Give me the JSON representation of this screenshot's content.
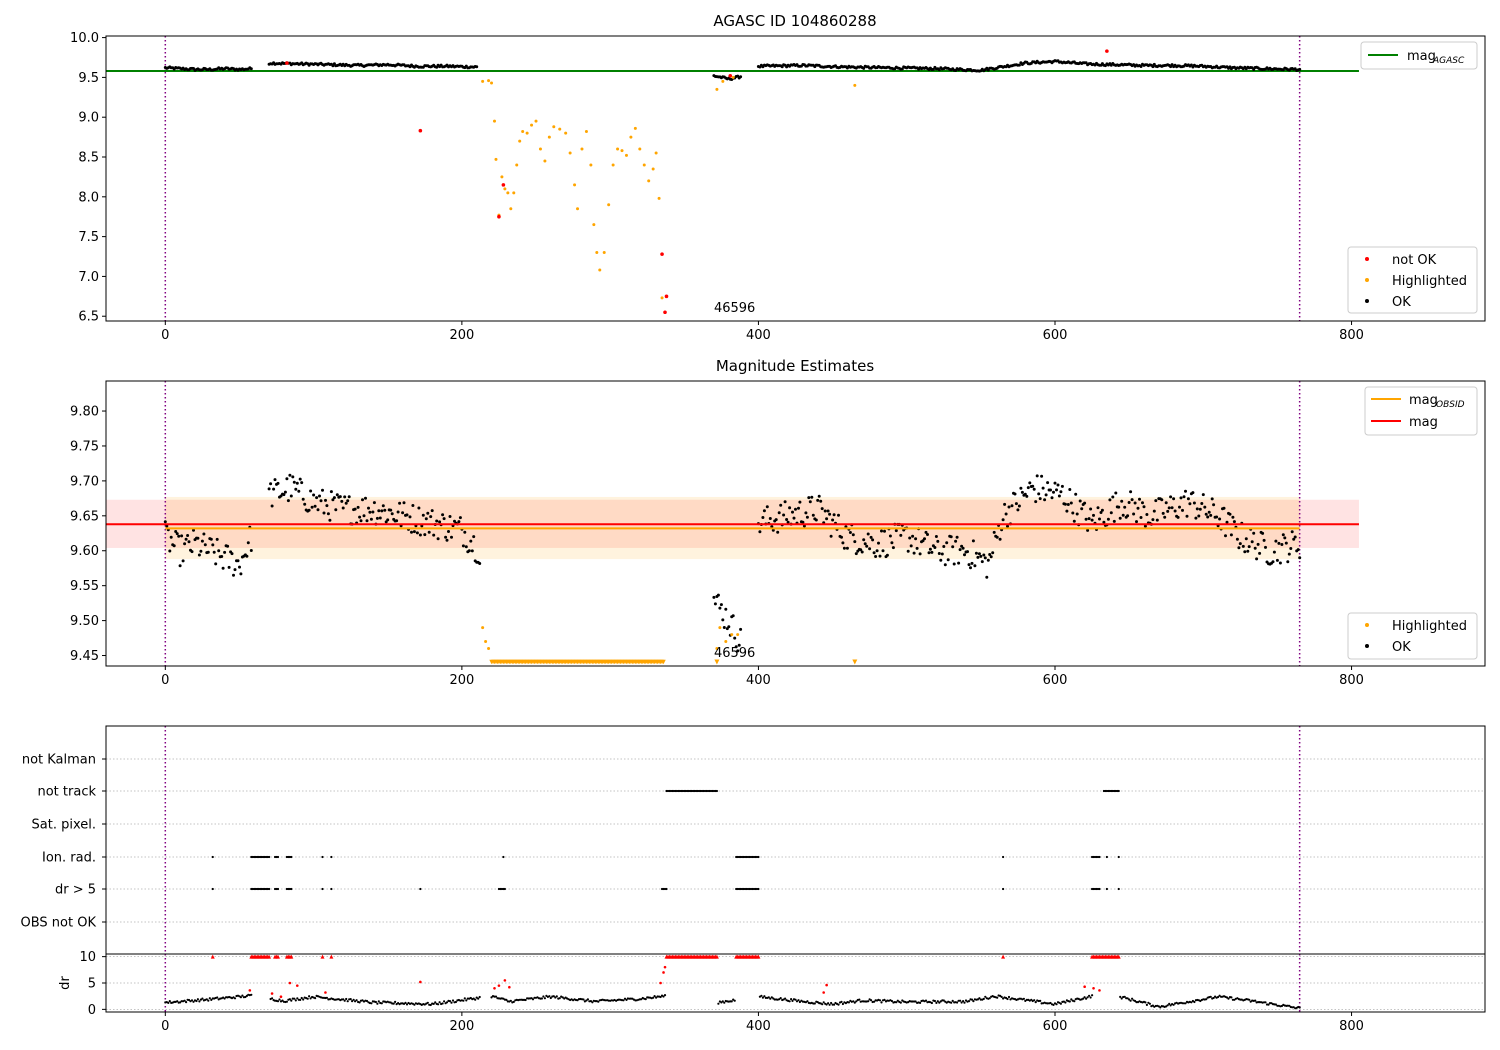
{
  "figure": {
    "panel1_title": "AGASC ID 104860288",
    "panel2_title": "Magnitude Estimates",
    "obsid_label": "46596",
    "colors": {
      "ok": "#000000",
      "highlighted": "#ffa500",
      "not_ok": "#ff0000",
      "agasc": "#008000",
      "obsid": "#ffa500",
      "mag": "#ff0000",
      "grid": "#b0b0b0",
      "marker": "#800080"
    }
  },
  "chart_data": [
    {
      "type": "scatter",
      "title": "AGASC ID 104860288",
      "xlim": [
        -40,
        890
      ],
      "ylim": [
        6.44,
        10.02
      ],
      "xticks": [
        0,
        200,
        400,
        600,
        800
      ],
      "yticks": [
        6.5,
        7.0,
        7.5,
        8.0,
        8.5,
        9.0,
        9.5,
        10.0
      ],
      "ytick_labels": [
        "6.5",
        "7.0",
        "7.5",
        "8.0",
        "8.5",
        "9.0",
        "9.5",
        "10.0"
      ],
      "vlines": [
        0,
        765
      ],
      "agasc_mag": 9.58,
      "annotation": "46596",
      "legend_upper": [
        {
          "label": "mag",
          "sub": "AGASC"
        }
      ],
      "legend_lower": [
        {
          "label": "not OK"
        },
        {
          "label": "Highlighted"
        },
        {
          "label": "OK"
        }
      ],
      "ok_segments": [
        {
          "x": [
            0,
            10,
            20,
            30,
            40,
            50,
            58
          ],
          "y": [
            9.62,
            9.61,
            9.6,
            9.6,
            9.61,
            9.6,
            9.61
          ]
        },
        {
          "x": [
            70,
            90,
            110,
            130,
            150,
            170,
            190,
            210
          ],
          "y": [
            9.68,
            9.67,
            9.66,
            9.65,
            9.66,
            9.64,
            9.64,
            9.63
          ]
        },
        {
          "x": [
            370,
            380,
            388
          ],
          "y": [
            9.52,
            9.48,
            9.51
          ]
        },
        {
          "x": [
            400,
            430,
            460,
            490,
            520,
            550,
            580,
            600,
            620,
            640,
            660,
            680,
            700,
            720,
            740,
            765
          ],
          "y": [
            9.64,
            9.65,
            9.63,
            9.62,
            9.61,
            9.59,
            9.68,
            9.7,
            9.67,
            9.66,
            9.65,
            9.65,
            9.64,
            9.62,
            9.61,
            9.6
          ]
        }
      ],
      "highlighted": [
        {
          "x": 214,
          "y": 9.45
        },
        {
          "x": 218,
          "y": 9.46
        },
        {
          "x": 220,
          "y": 9.43
        },
        {
          "x": 222,
          "y": 8.95
        },
        {
          "x": 223,
          "y": 8.47
        },
        {
          "x": 225,
          "y": 7.77
        },
        {
          "x": 227,
          "y": 8.25
        },
        {
          "x": 229,
          "y": 8.1
        },
        {
          "x": 231,
          "y": 8.05
        },
        {
          "x": 233,
          "y": 7.85
        },
        {
          "x": 235,
          "y": 8.05
        },
        {
          "x": 237,
          "y": 8.4
        },
        {
          "x": 239,
          "y": 8.7
        },
        {
          "x": 241,
          "y": 8.82
        },
        {
          "x": 244,
          "y": 8.8
        },
        {
          "x": 247,
          "y": 8.9
        },
        {
          "x": 250,
          "y": 8.95
        },
        {
          "x": 253,
          "y": 8.6
        },
        {
          "x": 256,
          "y": 8.45
        },
        {
          "x": 259,
          "y": 8.75
        },
        {
          "x": 262,
          "y": 8.88
        },
        {
          "x": 266,
          "y": 8.85
        },
        {
          "x": 270,
          "y": 8.8
        },
        {
          "x": 273,
          "y": 8.55
        },
        {
          "x": 276,
          "y": 8.15
        },
        {
          "x": 278,
          "y": 7.85
        },
        {
          "x": 281,
          "y": 8.6
        },
        {
          "x": 284,
          "y": 8.82
        },
        {
          "x": 287,
          "y": 8.4
        },
        {
          "x": 289,
          "y": 7.65
        },
        {
          "x": 291,
          "y": 7.3
        },
        {
          "x": 293,
          "y": 7.08
        },
        {
          "x": 296,
          "y": 7.3
        },
        {
          "x": 299,
          "y": 7.9
        },
        {
          "x": 302,
          "y": 8.4
        },
        {
          "x": 305,
          "y": 8.6
        },
        {
          "x": 308,
          "y": 8.58
        },
        {
          "x": 311,
          "y": 8.52
        },
        {
          "x": 314,
          "y": 8.75
        },
        {
          "x": 317,
          "y": 8.86
        },
        {
          "x": 320,
          "y": 8.6
        },
        {
          "x": 323,
          "y": 8.4
        },
        {
          "x": 326,
          "y": 8.2
        },
        {
          "x": 329,
          "y": 8.35
        },
        {
          "x": 331,
          "y": 8.55
        },
        {
          "x": 333,
          "y": 7.98
        },
        {
          "x": 335,
          "y": 6.73
        },
        {
          "x": 372,
          "y": 9.35
        },
        {
          "x": 376,
          "y": 9.45
        },
        {
          "x": 383,
          "y": 9.5
        },
        {
          "x": 465,
          "y": 9.4
        }
      ],
      "not_ok": [
        {
          "x": 82,
          "y": 9.68
        },
        {
          "x": 172,
          "y": 8.83
        },
        {
          "x": 225,
          "y": 7.75
        },
        {
          "x": 228,
          "y": 8.15
        },
        {
          "x": 335,
          "y": 7.28
        },
        {
          "x": 337,
          "y": 6.55
        },
        {
          "x": 338,
          "y": 6.75
        },
        {
          "x": 381,
          "y": 9.52
        },
        {
          "x": 635,
          "y": 9.83
        }
      ]
    },
    {
      "type": "scatter",
      "title": "Magnitude Estimates",
      "xlim": [
        -40,
        890
      ],
      "ylim": [
        9.435,
        9.843
      ],
      "xticks": [
        0,
        200,
        400,
        600,
        800
      ],
      "yticks": [
        9.45,
        9.5,
        9.55,
        9.6,
        9.65,
        9.7,
        9.75,
        9.8
      ],
      "ytick_labels": [
        "9.45",
        "9.50",
        "9.55",
        "9.60",
        "9.65",
        "9.70",
        "9.75",
        "9.80"
      ],
      "vlines": [
        0,
        765
      ],
      "mag": 9.638,
      "mag_band": [
        9.604,
        9.673
      ],
      "mag_obsid": 9.632,
      "mag_obsid_band": [
        9.588,
        9.677
      ],
      "annotation": "46596",
      "legend_upper": [
        {
          "label": "mag",
          "sub": "OBSID"
        },
        {
          "label": "mag"
        }
      ],
      "legend_lower": [
        {
          "label": "Highlighted"
        },
        {
          "label": "OK"
        }
      ],
      "ok_segments": [
        {
          "x": [
            0,
            10,
            20,
            30,
            40,
            50,
            58
          ],
          "y": [
            9.62,
            9.6,
            9.61,
            9.6,
            9.59,
            9.58,
            9.62
          ]
        },
        {
          "x": [
            70,
            85,
            100,
            120,
            140,
            160,
            180,
            200,
            212
          ],
          "y": [
            9.68,
            9.69,
            9.67,
            9.66,
            9.66,
            9.65,
            9.64,
            9.63,
            9.6
          ]
        },
        {
          "x": [
            370,
            380,
            388
          ],
          "y": [
            9.53,
            9.5,
            9.47
          ]
        },
        {
          "x": [
            400,
            420,
            440,
            460,
            480,
            500,
            520,
            540,
            555,
            565,
            585,
            605,
            625,
            645,
            665,
            690,
            710,
            725,
            745,
            765
          ],
          "y": [
            9.64,
            9.65,
            9.66,
            9.62,
            9.61,
            9.62,
            9.6,
            9.6,
            9.58,
            9.65,
            9.69,
            9.68,
            9.64,
            9.67,
            9.65,
            9.67,
            9.65,
            9.62,
            9.6,
            9.61
          ]
        }
      ],
      "highlighted_clipped_range": [
        220,
        336
      ],
      "highlighted": [
        {
          "x": 214,
          "y": 9.49
        },
        {
          "x": 216,
          "y": 9.47
        },
        {
          "x": 218,
          "y": 9.46
        },
        {
          "x": 372,
          "y": 9.46
        },
        {
          "x": 374,
          "y": 9.49
        },
        {
          "x": 378,
          "y": 9.47
        },
        {
          "x": 382,
          "y": 9.48
        },
        {
          "x": 386,
          "y": 9.48
        },
        {
          "x": 465,
          "y": 9.44
        }
      ]
    },
    {
      "type": "scatter",
      "title": "",
      "xlim": [
        -40,
        890
      ],
      "xticks": [
        0,
        200,
        400,
        600,
        800
      ],
      "vlines": [
        0,
        765
      ],
      "flag_rows": [
        "not Kalman",
        "not track",
        "Sat. pixel.",
        "Ion. rad.",
        "dr > 5",
        "OBS not OK"
      ],
      "flags": {
        "not track": [
          [
            338,
            372
          ],
          [
            633,
            643
          ]
        ],
        "Ion. rad.": [
          [
            32,
            32
          ],
          [
            58,
            70
          ],
          [
            74,
            76
          ],
          [
            82,
            85
          ],
          [
            106,
            106
          ],
          [
            112,
            112
          ],
          [
            228,
            228
          ],
          [
            385,
            400
          ],
          [
            565,
            565
          ],
          [
            625,
            630
          ],
          [
            635,
            635
          ],
          [
            643,
            643
          ]
        ],
        "dr > 5": [
          [
            32,
            32
          ],
          [
            58,
            70
          ],
          [
            74,
            76
          ],
          [
            82,
            85
          ],
          [
            106,
            106
          ],
          [
            112,
            112
          ],
          [
            172,
            172
          ],
          [
            225,
            229
          ],
          [
            335,
            338
          ],
          [
            385,
            400
          ],
          [
            565,
            565
          ],
          [
            625,
            630
          ],
          [
            635,
            635
          ],
          [
            643,
            643
          ]
        ]
      },
      "dr_ylabel": "dr",
      "dr_yticks": [
        0,
        5,
        10
      ],
      "dr_ylim": [
        -0.5,
        10.5
      ],
      "dr_trace_x": [
        0,
        30,
        58,
        80,
        100,
        140,
        180,
        220,
        232,
        260,
        290,
        320,
        336,
        370,
        400,
        430,
        450,
        470,
        500,
        540,
        560,
        600,
        625,
        645,
        670,
        710,
        730,
        765
      ],
      "dr_trace_y": [
        1.3,
        1.9,
        2.6,
        1.6,
        2.4,
        1.3,
        1.0,
        2.5,
        1.5,
        2.4,
        1.5,
        2.0,
        2.5,
        1.2,
        2.4,
        1.5,
        1.0,
        1.7,
        1.4,
        1.5,
        2.5,
        1.0,
        2.5,
        2.3,
        0.5,
        2.4,
        1.7,
        0.2
      ],
      "dr_clipped": [
        [
          32,
          32
        ],
        [
          58,
          70
        ],
        [
          74,
          76
        ],
        [
          82,
          85
        ],
        [
          106,
          106
        ],
        [
          112,
          112
        ],
        [
          338,
          372
        ],
        [
          385,
          400
        ],
        [
          565,
          565
        ],
        [
          625,
          643
        ]
      ],
      "dr_elevated": [
        {
          "x": 57,
          "y": 3.6
        },
        {
          "x": 72,
          "y": 3.0
        },
        {
          "x": 78,
          "y": 2.4
        },
        {
          "x": 84,
          "y": 5.0
        },
        {
          "x": 89,
          "y": 4.5
        },
        {
          "x": 108,
          "y": 3.2
        },
        {
          "x": 172,
          "y": 5.2
        },
        {
          "x": 222,
          "y": 4.0
        },
        {
          "x": 225,
          "y": 4.5
        },
        {
          "x": 229,
          "y": 5.5
        },
        {
          "x": 232,
          "y": 4.2
        },
        {
          "x": 334,
          "y": 5.0
        },
        {
          "x": 336,
          "y": 7.0
        },
        {
          "x": 337,
          "y": 8.0
        },
        {
          "x": 446,
          "y": 4.6
        },
        {
          "x": 444,
          "y": 3.2
        },
        {
          "x": 620,
          "y": 4.3
        },
        {
          "x": 626,
          "y": 4.0
        },
        {
          "x": 630,
          "y": 3.6
        }
      ]
    }
  ]
}
